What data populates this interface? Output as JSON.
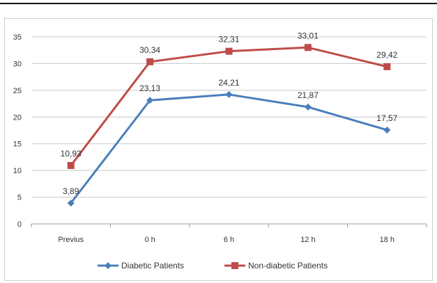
{
  "chart_data": {
    "type": "line",
    "title": "",
    "xlabel": "",
    "ylabel": "",
    "categories": [
      "Previus",
      "0 h",
      "6 h",
      "12 h",
      "18 h"
    ],
    "ylim": [
      0,
      35
    ],
    "yticks": [
      0,
      5,
      10,
      15,
      20,
      25,
      30,
      35
    ],
    "grid": true,
    "legend_position": "bottom",
    "series": [
      {
        "name": "Diabetic Patients",
        "color": "#4a7ebb",
        "marker": "diamond",
        "values": [
          3.89,
          23.13,
          24.21,
          21.87,
          17.57
        ],
        "labels": [
          "3,89",
          "23,13",
          "24,21",
          "21,87",
          "17,57"
        ]
      },
      {
        "name": "Non-diabetic Patients",
        "color": "#be4b48",
        "marker": "square",
        "values": [
          10.93,
          30.34,
          32.31,
          33.01,
          29.42
        ],
        "labels": [
          "10,93",
          "30,34",
          "32,31",
          "33,01",
          "29,42"
        ]
      }
    ]
  }
}
